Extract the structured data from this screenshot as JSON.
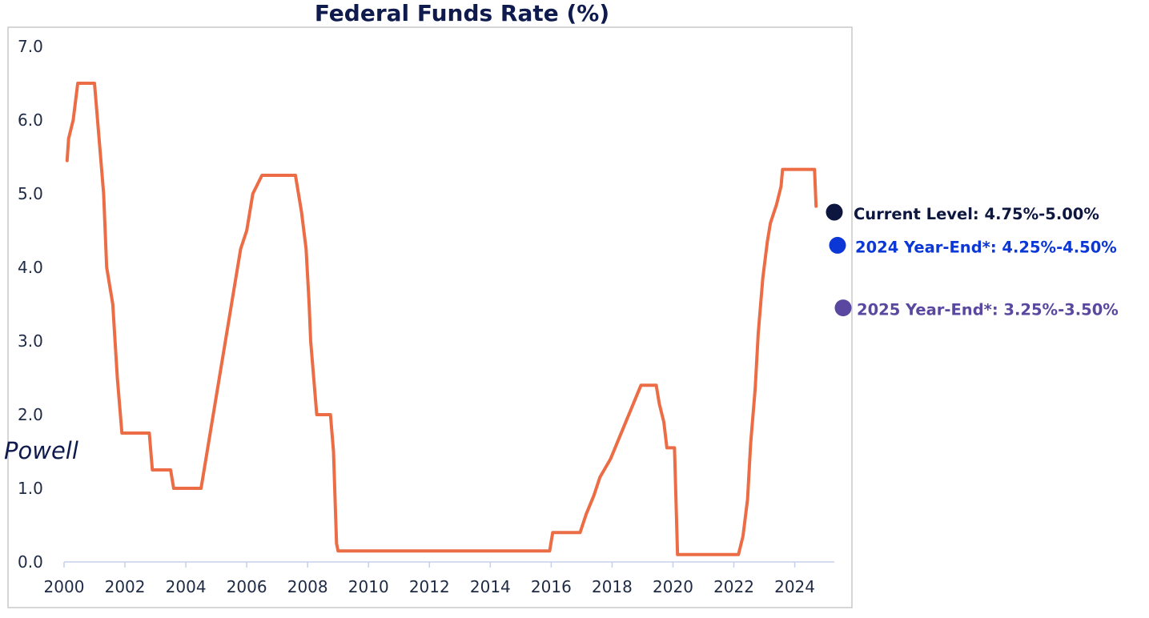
{
  "chart_data": {
    "type": "line",
    "title": "Federal Funds Rate (%)",
    "xlabel": "",
    "ylabel": "",
    "ylim": [
      0,
      7
    ],
    "xlim": [
      2000,
      2025.3
    ],
    "grid": false,
    "y_ticks": [
      {
        "value": 0,
        "label": "0.0"
      },
      {
        "value": 1,
        "label": "1.0"
      },
      {
        "value": 2,
        "label": "2.0"
      },
      {
        "value": 3,
        "label": "3.0"
      },
      {
        "value": 4,
        "label": "4.0"
      },
      {
        "value": 5,
        "label": "5.0"
      },
      {
        "value": 6,
        "label": "6.0"
      },
      {
        "value": 7,
        "label": "7.0"
      }
    ],
    "x_tick_marks": [
      2000,
      2002,
      2004,
      2006,
      2008,
      2010,
      2012,
      2014,
      2016,
      2018,
      2020,
      2022,
      2024
    ],
    "x_tick_labels": [
      {
        "value": 2000,
        "label": "2000"
      },
      {
        "value": 2002,
        "label": "2002"
      },
      {
        "value": 2004,
        "label": "2004"
      },
      {
        "value": 2006,
        "label": "2006"
      },
      {
        "value": 2008,
        "label": "2008"
      },
      {
        "value": 2010,
        "label": "2010"
      },
      {
        "value": 2012,
        "label": "2012"
      },
      {
        "value": 2014,
        "label": "2014"
      },
      {
        "value": 2016,
        "label": "2016"
      },
      {
        "value": 2018,
        "label": "2018"
      },
      {
        "value": 2020,
        "label": "2020"
      },
      {
        "value": 2022,
        "label": "2022"
      },
      {
        "value": 2024,
        "label": "2024"
      }
    ],
    "series": [
      {
        "color": "#ec6c45",
        "points": [
          [
            2000.1,
            5.45
          ],
          [
            2000.15,
            5.75
          ],
          [
            2000.3,
            6.0
          ],
          [
            2000.45,
            6.5
          ],
          [
            2001.0,
            6.5
          ],
          [
            2001.2,
            5.5
          ],
          [
            2001.3,
            5.0
          ],
          [
            2001.4,
            4.0
          ],
          [
            2001.6,
            3.5
          ],
          [
            2001.75,
            2.5
          ],
          [
            2001.9,
            1.75
          ],
          [
            2002.8,
            1.75
          ],
          [
            2002.9,
            1.25
          ],
          [
            2003.5,
            1.25
          ],
          [
            2003.6,
            1.0
          ],
          [
            2004.5,
            1.0
          ],
          [
            2004.6,
            1.25
          ],
          [
            2004.8,
            1.75
          ],
          [
            2005.0,
            2.25
          ],
          [
            2005.2,
            2.75
          ],
          [
            2005.4,
            3.25
          ],
          [
            2005.6,
            3.75
          ],
          [
            2005.8,
            4.25
          ],
          [
            2006.0,
            4.5
          ],
          [
            2006.2,
            5.0
          ],
          [
            2006.5,
            5.25
          ],
          [
            2007.6,
            5.25
          ],
          [
            2007.8,
            4.75
          ],
          [
            2007.95,
            4.25
          ],
          [
            2008.05,
            3.5
          ],
          [
            2008.1,
            3.0
          ],
          [
            2008.25,
            2.25
          ],
          [
            2008.3,
            2.0
          ],
          [
            2008.75,
            2.0
          ],
          [
            2008.85,
            1.5
          ],
          [
            2008.95,
            0.25
          ],
          [
            2009.0,
            0.15
          ],
          [
            2015.95,
            0.15
          ],
          [
            2016.05,
            0.4
          ],
          [
            2016.95,
            0.4
          ],
          [
            2017.15,
            0.65
          ],
          [
            2017.4,
            0.9
          ],
          [
            2017.6,
            1.15
          ],
          [
            2017.95,
            1.4
          ],
          [
            2018.2,
            1.65
          ],
          [
            2018.45,
            1.9
          ],
          [
            2018.7,
            2.15
          ],
          [
            2018.95,
            2.4
          ],
          [
            2019.45,
            2.4
          ],
          [
            2019.55,
            2.15
          ],
          [
            2019.7,
            1.9
          ],
          [
            2019.8,
            1.55
          ],
          [
            2020.05,
            1.55
          ],
          [
            2020.15,
            0.1
          ],
          [
            2022.15,
            0.1
          ],
          [
            2022.3,
            0.35
          ],
          [
            2022.45,
            0.85
          ],
          [
            2022.55,
            1.6
          ],
          [
            2022.7,
            2.35
          ],
          [
            2022.8,
            3.1
          ],
          [
            2022.95,
            3.85
          ],
          [
            2023.1,
            4.35
          ],
          [
            2023.2,
            4.6
          ],
          [
            2023.4,
            4.85
          ],
          [
            2023.55,
            5.1
          ],
          [
            2023.6,
            5.33
          ],
          [
            2024.65,
            5.33
          ],
          [
            2024.7,
            4.83
          ]
        ]
      }
    ],
    "annotations": [
      {
        "label": "Powell",
        "style": "italic"
      },
      {
        "label": "Current Level: 4.75%-5.00%",
        "value": 4.75,
        "marker_color": "#0d163f",
        "text_color": "#0d163f"
      },
      {
        "label": "2024 Year-End*: 4.25%-4.50%",
        "value": 4.3,
        "marker_color": "#0a37d6",
        "text_color": "#0a37d6"
      },
      {
        "label": "2025 Year-End*: 3.25%-3.50%",
        "value": 3.45,
        "marker_color": "#5a48a0",
        "text_color": "#5a48a0"
      }
    ]
  }
}
